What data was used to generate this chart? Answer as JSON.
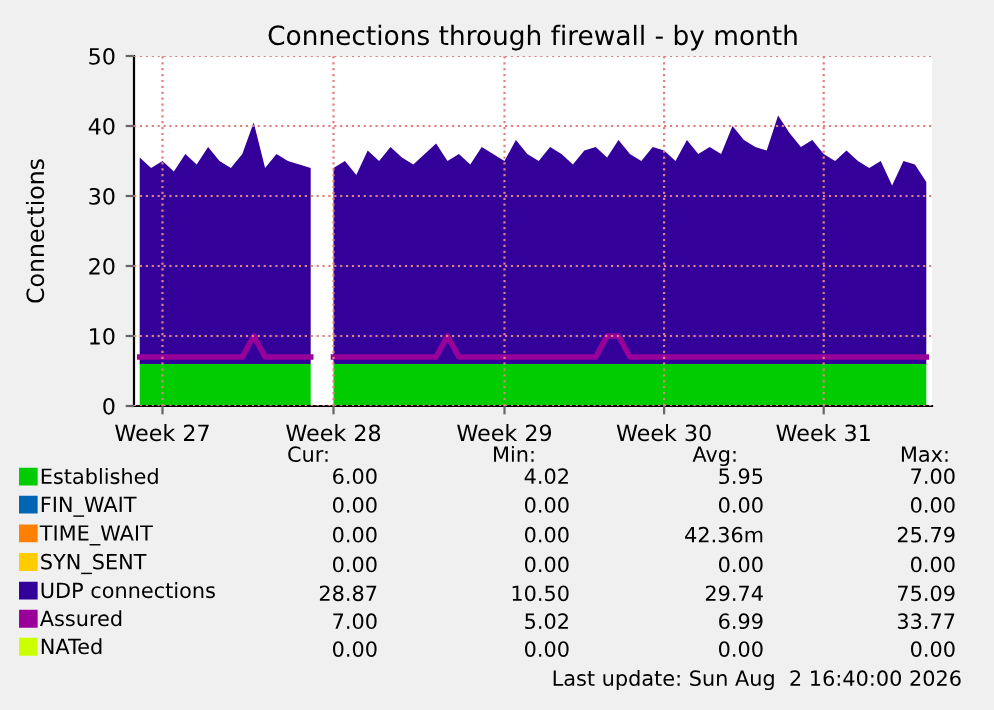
{
  "chart_data": {
    "type": "area",
    "title": "Connections through firewall - by month",
    "ylabel": "Connections",
    "stacked": true,
    "legend": "bottom",
    "grid": true,
    "categories": [
      null,
      null,
      "Week 27",
      null,
      null,
      null,
      null,
      null,
      null,
      null,
      null,
      null,
      null,
      null,
      null,
      null,
      null,
      "Week 28",
      null,
      null,
      null,
      null,
      null,
      null,
      null,
      null,
      null,
      null,
      null,
      null,
      null,
      null,
      "Week 29",
      null,
      null,
      null,
      null,
      null,
      null,
      null,
      null,
      null,
      null,
      null,
      null,
      null,
      "Week 30",
      null,
      null,
      null,
      null,
      null,
      null,
      null,
      null,
      null,
      null,
      null,
      null,
      null,
      "Week 31",
      null,
      null,
      null,
      null,
      null,
      null,
      null,
      null,
      null
    ],
    "ylim": [
      0,
      50
    ],
    "yticks": [
      0,
      10,
      20,
      30,
      40,
      50
    ],
    "series": [
      {
        "name": "Established",
        "color": "#00cc00",
        "values": [
          6,
          6,
          6,
          6,
          6,
          6,
          6,
          6,
          6,
          6,
          6,
          6,
          6,
          6,
          6,
          6,
          null,
          6,
          6,
          6,
          6,
          6,
          6,
          6,
          6,
          6,
          6,
          6,
          6,
          6,
          6,
          6,
          6,
          6,
          6,
          6,
          6,
          6,
          6,
          6,
          6,
          6,
          6,
          6,
          6,
          6,
          6,
          6,
          6,
          6,
          6,
          6,
          6,
          6,
          6,
          6,
          6,
          6,
          6,
          6,
          6,
          6,
          6,
          6,
          6,
          6,
          6,
          6,
          6,
          6
        ]
      },
      {
        "name": "FIN_WAIT",
        "color": "#0066b3",
        "values": [
          null,
          null,
          null,
          null,
          null,
          null,
          null,
          null,
          null,
          null,
          null,
          null,
          null,
          null,
          null,
          null,
          null,
          null,
          null,
          null,
          null,
          null,
          null,
          null,
          null,
          null,
          null,
          null,
          null,
          null,
          null,
          null,
          null,
          null,
          null,
          null,
          null,
          null,
          null,
          null,
          null,
          null,
          null,
          null,
          null,
          null,
          null,
          null,
          null,
          null,
          null,
          null,
          null,
          null,
          null,
          null,
          null,
          null,
          null,
          null,
          null,
          null,
          null,
          null,
          null,
          null,
          null,
          null,
          null,
          null
        ]
      },
      {
        "name": "TIME_WAIT",
        "color": "#ff8000",
        "values": [
          null,
          null,
          null,
          null,
          null,
          null,
          null,
          null,
          null,
          null,
          null,
          null,
          null,
          null,
          null,
          null,
          null,
          null,
          null,
          null,
          null,
          null,
          null,
          null,
          null,
          null,
          null,
          null,
          null,
          null,
          null,
          null,
          null,
          null,
          null,
          null,
          null,
          null,
          null,
          null,
          null,
          null,
          null,
          null,
          null,
          null,
          null,
          null,
          null,
          null,
          null,
          null,
          null,
          null,
          null,
          null,
          null,
          null,
          null,
          null,
          null,
          null,
          null,
          null,
          null,
          null,
          null,
          null,
          null,
          null
        ]
      },
      {
        "name": "SYN_SENT",
        "color": "#ffcc00",
        "values": [
          null,
          null,
          null,
          null,
          null,
          null,
          null,
          null,
          null,
          null,
          null,
          null,
          null,
          null,
          null,
          null,
          null,
          null,
          null,
          null,
          null,
          null,
          null,
          null,
          null,
          null,
          null,
          null,
          null,
          null,
          null,
          null,
          null,
          null,
          null,
          null,
          null,
          null,
          null,
          null,
          null,
          null,
          null,
          null,
          null,
          null,
          null,
          null,
          null,
          null,
          null,
          null,
          null,
          null,
          null,
          null,
          null,
          null,
          null,
          null,
          null,
          null,
          null,
          null,
          null,
          null,
          null,
          null,
          null,
          null
        ]
      },
      {
        "name": "UDP connections",
        "color": "#330099",
        "values": [
          29.5,
          28,
          29,
          27.5,
          30,
          28.5,
          31,
          29,
          28,
          30,
          34.5,
          28,
          30,
          29,
          28.5,
          28,
          null,
          28,
          29,
          27,
          30.5,
          29,
          31,
          29.5,
          28.5,
          30,
          31.5,
          29,
          30,
          28.5,
          31,
          30,
          29,
          32,
          30,
          29,
          31,
          30,
          28.5,
          30.5,
          31,
          29.5,
          32,
          30,
          29,
          31,
          30.5,
          29,
          32,
          30,
          31,
          30,
          34,
          32,
          31,
          30.5,
          35.5,
          33,
          31,
          32,
          30,
          29,
          30.5,
          29,
          28,
          29,
          25.5,
          29,
          28.5,
          26
        ]
      },
      {
        "name": "Assured",
        "color": "#990099",
        "type": "line",
        "values": [
          7,
          7,
          7,
          7,
          7,
          7,
          7,
          7,
          7,
          7,
          10,
          7,
          7,
          7,
          7,
          7,
          null,
          7,
          7,
          7,
          7,
          7,
          7,
          7,
          7,
          7,
          7,
          10,
          7,
          7,
          7,
          7,
          7,
          7,
          7,
          7,
          7,
          7,
          7,
          7,
          7,
          10,
          10,
          7,
          7,
          7,
          7,
          7,
          7,
          7,
          7,
          7,
          7,
          7,
          7,
          7,
          7,
          7,
          7,
          7,
          7,
          7,
          7,
          7,
          7,
          7,
          7,
          7,
          7,
          7
        ]
      },
      {
        "name": "NATed",
        "color": "#ccff00",
        "type": "line",
        "values": [
          null,
          null,
          null,
          null,
          null,
          null,
          null,
          null,
          null,
          null,
          null,
          null,
          null,
          null,
          null,
          null,
          null,
          null,
          null,
          null,
          null,
          null,
          null,
          null,
          null,
          null,
          null,
          null,
          null,
          null,
          null,
          null,
          null,
          null,
          null,
          null,
          null,
          null,
          null,
          null,
          null,
          null,
          null,
          null,
          null,
          null,
          null,
          null,
          null,
          null,
          null,
          null,
          null,
          null,
          null,
          null,
          null,
          null,
          null,
          null,
          null,
          null,
          null,
          null,
          null,
          null,
          null,
          null,
          null,
          null
        ]
      }
    ],
    "annotations": [
      "Cur:",
      "Min:",
      "Avg:",
      "Max:",
      "6.00",
      "4.02",
      "5.95",
      "7.00",
      "0.00",
      "0.00",
      "0.00",
      "0.00",
      "0.00",
      "0.00",
      "42.36m",
      "25.79",
      "0.00",
      "0.00",
      "0.00",
      "0.00",
      "28.87",
      "10.50",
      "29.74",
      "75.09",
      "7.00",
      "5.02",
      "6.99",
      "33.77",
      "0.00",
      "0.00",
      "0.00",
      "0.00",
      "Last update: Sun Aug  2 16:40:00 2026"
    ]
  }
}
